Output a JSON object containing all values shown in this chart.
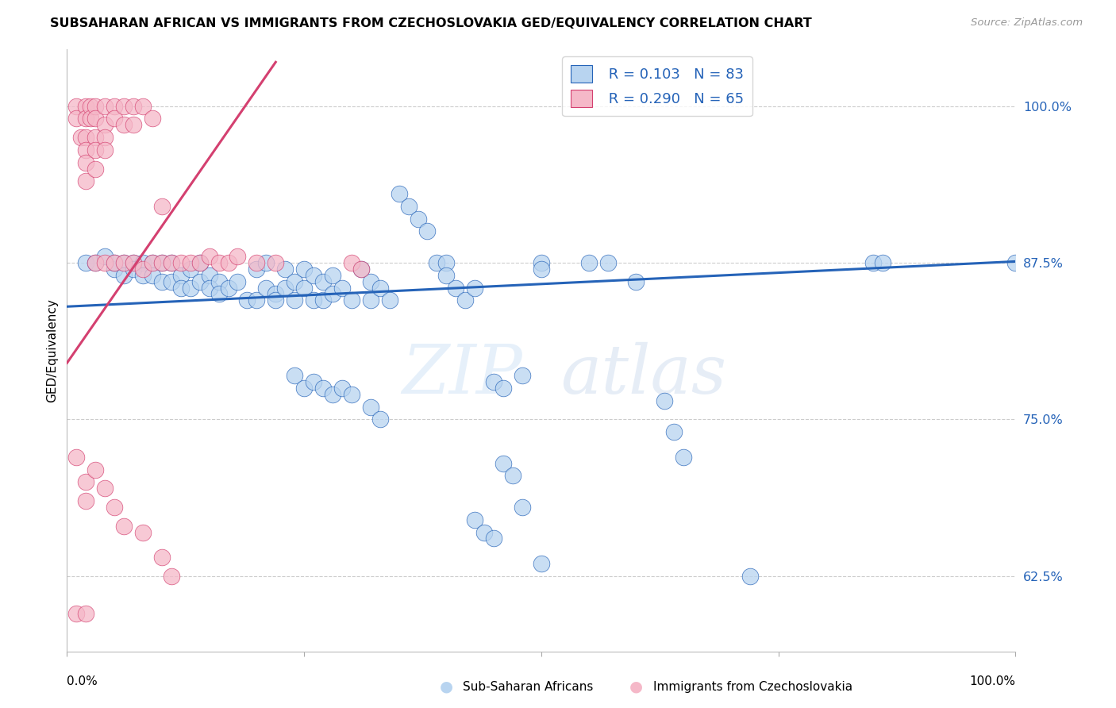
{
  "title": "SUBSAHARAN AFRICAN VS IMMIGRANTS FROM CZECHOSLOVAKIA GED/EQUIVALENCY CORRELATION CHART",
  "source": "Source: ZipAtlas.com",
  "ylabel": "GED/Equivalency",
  "ytick_values": [
    0.625,
    0.75,
    0.875,
    1.0
  ],
  "ytick_labels": [
    "62.5%",
    "75.0%",
    "87.5%",
    "100.0%"
  ],
  "xlim": [
    0.0,
    1.0
  ],
  "ylim": [
    0.565,
    1.045
  ],
  "legend_blue_r": "R = 0.103",
  "legend_blue_n": "N = 83",
  "legend_pink_r": "R = 0.290",
  "legend_pink_n": "N = 65",
  "blue_color": "#b8d4f0",
  "pink_color": "#f5b8c8",
  "blue_line_color": "#2563b8",
  "pink_line_color": "#d44070",
  "blue_scatter": [
    [
      0.02,
      0.875
    ],
    [
      0.03,
      0.875
    ],
    [
      0.04,
      0.88
    ],
    [
      0.05,
      0.87
    ],
    [
      0.05,
      0.875
    ],
    [
      0.06,
      0.875
    ],
    [
      0.06,
      0.865
    ],
    [
      0.07,
      0.875
    ],
    [
      0.07,
      0.87
    ],
    [
      0.08,
      0.875
    ],
    [
      0.08,
      0.865
    ],
    [
      0.09,
      0.875
    ],
    [
      0.09,
      0.865
    ],
    [
      0.1,
      0.875
    ],
    [
      0.1,
      0.86
    ],
    [
      0.11,
      0.875
    ],
    [
      0.11,
      0.86
    ],
    [
      0.12,
      0.865
    ],
    [
      0.12,
      0.855
    ],
    [
      0.13,
      0.87
    ],
    [
      0.13,
      0.855
    ],
    [
      0.14,
      0.875
    ],
    [
      0.14,
      0.86
    ],
    [
      0.15,
      0.865
    ],
    [
      0.15,
      0.855
    ],
    [
      0.16,
      0.86
    ],
    [
      0.16,
      0.85
    ],
    [
      0.17,
      0.855
    ],
    [
      0.18,
      0.86
    ],
    [
      0.19,
      0.845
    ],
    [
      0.2,
      0.87
    ],
    [
      0.2,
      0.845
    ],
    [
      0.21,
      0.875
    ],
    [
      0.21,
      0.855
    ],
    [
      0.22,
      0.85
    ],
    [
      0.22,
      0.845
    ],
    [
      0.23,
      0.87
    ],
    [
      0.23,
      0.855
    ],
    [
      0.24,
      0.86
    ],
    [
      0.24,
      0.845
    ],
    [
      0.25,
      0.87
    ],
    [
      0.25,
      0.855
    ],
    [
      0.26,
      0.865
    ],
    [
      0.26,
      0.845
    ],
    [
      0.27,
      0.86
    ],
    [
      0.27,
      0.845
    ],
    [
      0.28,
      0.865
    ],
    [
      0.28,
      0.85
    ],
    [
      0.29,
      0.855
    ],
    [
      0.3,
      0.845
    ],
    [
      0.31,
      0.87
    ],
    [
      0.32,
      0.86
    ],
    [
      0.32,
      0.845
    ],
    [
      0.33,
      0.855
    ],
    [
      0.34,
      0.845
    ],
    [
      0.35,
      0.93
    ],
    [
      0.36,
      0.92
    ],
    [
      0.37,
      0.91
    ],
    [
      0.38,
      0.9
    ],
    [
      0.39,
      0.875
    ],
    [
      0.4,
      0.875
    ],
    [
      0.4,
      0.865
    ],
    [
      0.41,
      0.855
    ],
    [
      0.42,
      0.845
    ],
    [
      0.43,
      0.855
    ],
    [
      0.24,
      0.785
    ],
    [
      0.25,
      0.775
    ],
    [
      0.26,
      0.78
    ],
    [
      0.27,
      0.775
    ],
    [
      0.28,
      0.77
    ],
    [
      0.29,
      0.775
    ],
    [
      0.3,
      0.77
    ],
    [
      0.32,
      0.76
    ],
    [
      0.33,
      0.75
    ],
    [
      0.45,
      0.78
    ],
    [
      0.46,
      0.775
    ],
    [
      0.48,
      0.785
    ],
    [
      0.5,
      0.875
    ],
    [
      0.5,
      0.87
    ],
    [
      0.55,
      0.875
    ],
    [
      0.57,
      0.875
    ],
    [
      0.6,
      0.86
    ],
    [
      0.63,
      0.765
    ],
    [
      0.43,
      0.67
    ],
    [
      0.44,
      0.66
    ],
    [
      0.45,
      0.655
    ],
    [
      0.46,
      0.715
    ],
    [
      0.47,
      0.705
    ],
    [
      0.48,
      0.68
    ],
    [
      0.5,
      0.635
    ],
    [
      0.64,
      0.74
    ],
    [
      0.65,
      0.72
    ],
    [
      0.72,
      0.625
    ],
    [
      0.85,
      0.875
    ],
    [
      0.86,
      0.875
    ],
    [
      1.0,
      0.875
    ]
  ],
  "pink_scatter": [
    [
      0.01,
      1.0
    ],
    [
      0.01,
      0.99
    ],
    [
      0.015,
      0.975
    ],
    [
      0.02,
      1.0
    ],
    [
      0.02,
      0.99
    ],
    [
      0.02,
      0.975
    ],
    [
      0.02,
      0.965
    ],
    [
      0.02,
      0.955
    ],
    [
      0.02,
      0.94
    ],
    [
      0.025,
      1.0
    ],
    [
      0.025,
      0.99
    ],
    [
      0.03,
      1.0
    ],
    [
      0.03,
      0.99
    ],
    [
      0.03,
      0.975
    ],
    [
      0.03,
      0.965
    ],
    [
      0.03,
      0.95
    ],
    [
      0.04,
      1.0
    ],
    [
      0.04,
      0.985
    ],
    [
      0.04,
      0.975
    ],
    [
      0.04,
      0.965
    ],
    [
      0.05,
      1.0
    ],
    [
      0.05,
      0.99
    ],
    [
      0.06,
      1.0
    ],
    [
      0.06,
      0.985
    ],
    [
      0.07,
      1.0
    ],
    [
      0.07,
      0.985
    ],
    [
      0.08,
      1.0
    ],
    [
      0.09,
      0.99
    ],
    [
      0.1,
      0.92
    ],
    [
      0.03,
      0.875
    ],
    [
      0.04,
      0.875
    ],
    [
      0.05,
      0.875
    ],
    [
      0.06,
      0.875
    ],
    [
      0.07,
      0.875
    ],
    [
      0.08,
      0.87
    ],
    [
      0.09,
      0.875
    ],
    [
      0.1,
      0.875
    ],
    [
      0.11,
      0.875
    ],
    [
      0.12,
      0.875
    ],
    [
      0.13,
      0.875
    ],
    [
      0.14,
      0.875
    ],
    [
      0.15,
      0.88
    ],
    [
      0.16,
      0.875
    ],
    [
      0.17,
      0.875
    ],
    [
      0.18,
      0.88
    ],
    [
      0.2,
      0.875
    ],
    [
      0.22,
      0.875
    ],
    [
      0.3,
      0.875
    ],
    [
      0.31,
      0.87
    ],
    [
      0.01,
      0.72
    ],
    [
      0.02,
      0.7
    ],
    [
      0.02,
      0.685
    ],
    [
      0.03,
      0.71
    ],
    [
      0.04,
      0.695
    ],
    [
      0.05,
      0.68
    ],
    [
      0.06,
      0.665
    ],
    [
      0.08,
      0.66
    ],
    [
      0.1,
      0.64
    ],
    [
      0.11,
      0.625
    ],
    [
      0.01,
      0.595
    ],
    [
      0.02,
      0.595
    ]
  ],
  "blue_line_x": [
    0.0,
    1.0
  ],
  "blue_line_y": [
    0.84,
    0.876
  ],
  "pink_line_x": [
    0.0,
    0.22
  ],
  "pink_line_y": [
    0.795,
    1.035
  ],
  "watermark_zip": "ZIP",
  "watermark_atlas": "atlas",
  "background_color": "#ffffff",
  "grid_color": "#cccccc"
}
